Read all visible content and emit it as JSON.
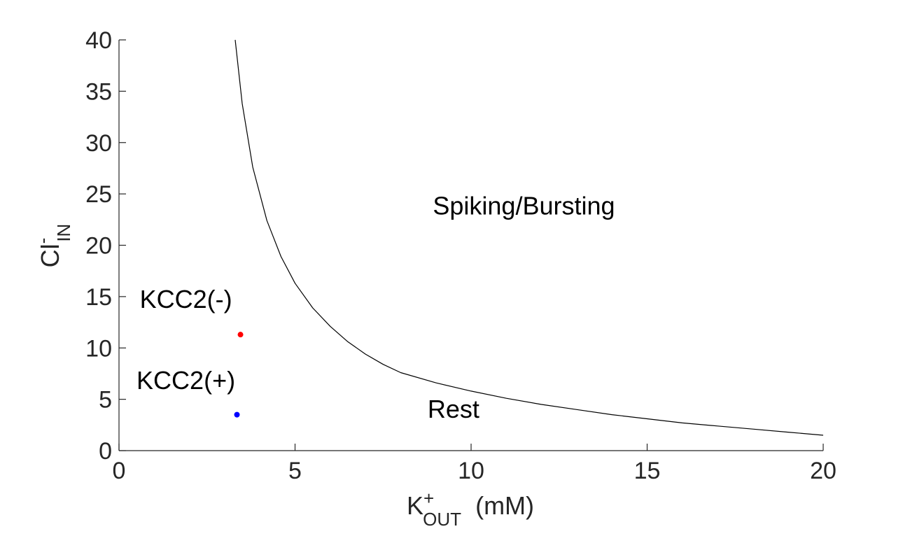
{
  "chart_data": {
    "type": "scatter",
    "title": "",
    "xlabel": {
      "base": "K",
      "superscript": "+",
      "subscript": "OUT",
      "unit": "(mM)"
    },
    "ylabel": {
      "base": "Cl",
      "superscript": "-",
      "subscript": "IN"
    },
    "xlim": [
      0,
      20
    ],
    "ylim": [
      0,
      40
    ],
    "xticks": [
      0,
      5,
      10,
      15,
      20
    ],
    "yticks": [
      0,
      5,
      10,
      15,
      20,
      25,
      30,
      35,
      40
    ],
    "grid": false,
    "box": "left-bottom",
    "boundary_curve": {
      "name": "",
      "color": "#000000",
      "x": [
        3.3,
        3.5,
        3.8,
        4.2,
        4.6,
        5.0,
        5.5,
        6.0,
        6.5,
        7.0,
        7.5,
        8.0,
        9.0,
        10.0,
        11.0,
        12.0,
        13.0,
        14.0,
        15.0,
        16.0,
        17.0,
        18.0,
        19.0,
        20.0
      ],
      "y": [
        40.0,
        33.8,
        27.6,
        22.4,
        18.9,
        16.3,
        13.9,
        12.1,
        10.6,
        9.4,
        8.4,
        7.6,
        6.6,
        5.8,
        5.1,
        4.5,
        4.0,
        3.5,
        3.1,
        2.7,
        2.4,
        2.1,
        1.8,
        1.5
      ]
    },
    "points": [
      {
        "name": "KCC2(-)",
        "x": 3.45,
        "y": 11.3,
        "color": "#ff0000"
      },
      {
        "name": "KCC2(+)",
        "x": 3.35,
        "y": 3.5,
        "color": "#0000ff"
      }
    ],
    "annotations": [
      {
        "text": "Spiking/Bursting",
        "x": 11.5,
        "y": 23.0
      },
      {
        "text": "Rest",
        "x": 9.5,
        "y": 3.2
      },
      {
        "text": "KCC2(-)",
        "x": 1.9,
        "y": 13.9
      },
      {
        "text": "KCC2(+)",
        "x": 1.9,
        "y": 6.0
      }
    ]
  }
}
